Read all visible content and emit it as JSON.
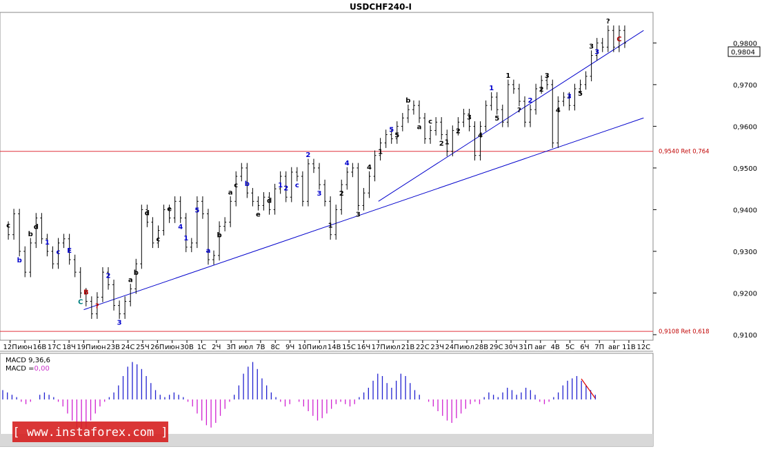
{
  "chart_data": {
    "type": "candlestick",
    "title": "USDCHF240-I",
    "symbol": "USDCHF",
    "timeframe": "H4",
    "current_price": "0,9804",
    "ylim": [
      0.909,
      0.987
    ],
    "y_ticks": [
      "0,9100",
      "0,9200",
      "0,9300",
      "0,9400",
      "0,9500",
      "0,9600",
      "0,9700",
      "0,9800"
    ],
    "x_ticks": [
      "12П",
      "июн",
      "16В",
      "17С",
      "18Ч",
      "19П",
      "июн",
      "23В",
      "24С",
      "25Ч",
      "26П",
      "июн",
      "30В",
      "1С",
      "2Ч",
      "3П",
      "июл",
      "7В",
      "8С",
      "9Ч",
      "10П",
      "июл",
      "14В",
      "15С",
      "16Ч",
      "17П",
      "июл",
      "21В",
      "22С",
      "23Ч",
      "24П",
      "июл",
      "28В",
      "29С",
      "30Ч",
      "31П",
      "авг",
      "4В",
      "5С",
      "6Ч",
      "7П",
      "авг",
      "11В",
      "12С"
    ],
    "levels": [
      {
        "value": 0.954,
        "label": "0,9540 Ret 0,764",
        "color": "#e0303a"
      },
      {
        "value": 0.9108,
        "label": "0,9108 Ret 0,618",
        "color": "#e0303a"
      }
    ],
    "price_path": [
      0.936,
      0.934,
      0.939,
      0.93,
      0.925,
      0.932,
      0.938,
      0.933,
      0.93,
      0.927,
      0.932,
      0.933,
      0.928,
      0.925,
      0.92,
      0.918,
      0.915,
      0.919,
      0.925,
      0.922,
      0.917,
      0.915,
      0.918,
      0.921,
      0.927,
      0.94,
      0.937,
      0.932,
      0.935,
      0.94,
      0.938,
      0.942,
      0.938,
      0.931,
      0.932,
      0.942,
      0.939,
      0.928,
      0.929,
      0.936,
      0.937,
      0.942,
      0.948,
      0.95,
      0.944,
      0.942,
      0.941,
      0.943,
      0.94,
      0.945,
      0.948,
      0.943,
      0.949,
      0.948,
      0.942,
      0.951,
      0.95,
      0.946,
      0.942,
      0.934,
      0.94,
      0.946,
      0.949,
      0.95,
      0.941,
      0.944,
      0.948,
      0.953,
      0.956,
      0.958,
      0.957,
      0.96,
      0.962,
      0.964,
      0.965,
      0.962,
      0.957,
      0.959,
      0.961,
      0.958,
      0.954,
      0.959,
      0.961,
      0.963,
      0.96,
      0.953,
      0.96,
      0.965,
      0.967,
      0.964,
      0.961,
      0.97,
      0.969,
      0.966,
      0.961,
      0.964,
      0.969,
      0.971,
      0.97,
      0.956,
      0.966,
      0.967,
      0.965,
      0.969,
      0.97,
      0.972,
      0.977,
      0.98,
      0.979,
      0.983,
      0.979,
      0.983,
      0.98
    ],
    "channels": [
      {
        "name": "upper",
        "from": [
          "17П",
          "0,9420"
        ],
        "to": [
          "12С",
          "0,9830"
        ],
        "color": "#0000cc"
      },
      {
        "name": "lower",
        "from": [
          "19П",
          "0,9160"
        ],
        "to": [
          "12С",
          "0,9620"
        ],
        "color": "#0000cc"
      }
    ],
    "wave_labels": [
      {
        "text": "c",
        "color": "#000000"
      },
      {
        "text": "b",
        "color": "#0000cc"
      },
      {
        "text": "b",
        "color": "#000000"
      },
      {
        "text": "d",
        "color": "#000000"
      },
      {
        "text": "1",
        "color": "#0000cc"
      },
      {
        "text": "c",
        "color": "#0000cc"
      },
      {
        "text": "E",
        "color": "#0000cc"
      },
      {
        "text": "C",
        "color": "#008080"
      },
      {
        "text": "B",
        "color": "#b00000"
      },
      {
        "text": "?",
        "color": "#cc0000"
      },
      {
        "text": "2",
        "color": "#0000cc"
      },
      {
        "text": "3",
        "color": "#0000cc"
      },
      {
        "text": "a",
        "color": "#000000"
      },
      {
        "text": "b",
        "color": "#000000"
      },
      {
        "text": "d",
        "color": "#000000"
      },
      {
        "text": "c",
        "color": "#000000"
      },
      {
        "text": "e",
        "color": "#000000"
      },
      {
        "text": "4",
        "color": "#0000cc"
      },
      {
        "text": "1",
        "color": "#0000cc"
      },
      {
        "text": "5",
        "color": "#0000cc"
      },
      {
        "text": "a",
        "color": "#0000cc"
      },
      {
        "text": "b",
        "color": "#000000"
      },
      {
        "text": "a",
        "color": "#000000"
      },
      {
        "text": "c",
        "color": "#000000"
      },
      {
        "text": "b",
        "color": "#0000cc"
      },
      {
        "text": "e",
        "color": "#000000"
      },
      {
        "text": "d",
        "color": "#000000"
      },
      {
        "text": "1",
        "color": "#0000cc"
      },
      {
        "text": "2",
        "color": "#0000cc"
      },
      {
        "text": "c",
        "color": "#0000cc"
      },
      {
        "text": "2",
        "color": "#0000cc"
      },
      {
        "text": "3",
        "color": "#0000cc"
      },
      {
        "text": "1",
        "color": "#000000"
      },
      {
        "text": "2",
        "color": "#000000"
      },
      {
        "text": "4",
        "color": "#0000cc"
      },
      {
        "text": "3",
        "color": "#000000"
      },
      {
        "text": "4",
        "color": "#000000"
      },
      {
        "text": "1",
        "color": "#000000"
      },
      {
        "text": "5",
        "color": "#0000cc"
      },
      {
        "text": "5",
        "color": "#000000"
      },
      {
        "text": "b",
        "color": "#000000"
      },
      {
        "text": "a",
        "color": "#000000"
      },
      {
        "text": "c",
        "color": "#000000"
      },
      {
        "text": "2",
        "color": "#000000"
      },
      {
        "text": "1",
        "color": "#000000"
      },
      {
        "text": "2",
        "color": "#000000"
      },
      {
        "text": "3",
        "color": "#000000"
      },
      {
        "text": "4",
        "color": "#000000"
      },
      {
        "text": "1",
        "color": "#0000cc"
      },
      {
        "text": "5",
        "color": "#000000"
      },
      {
        "text": "1",
        "color": "#000000"
      },
      {
        "text": "?",
        "color": "#000000"
      },
      {
        "text": "2",
        "color": "#0000cc"
      },
      {
        "text": "2",
        "color": "#000000"
      },
      {
        "text": "3",
        "color": "#000000"
      },
      {
        "text": "4",
        "color": "#000000"
      },
      {
        "text": "3",
        "color": "#0000cc"
      },
      {
        "text": "5",
        "color": "#000000"
      },
      {
        "text": "3",
        "color": "#000000"
      },
      {
        "text": "3",
        "color": "#0000cc"
      },
      {
        "text": "?",
        "color": "#000000"
      },
      {
        "text": "C",
        "color": "#b00000"
      }
    ],
    "macd": {
      "label": "MACD 9,36,6",
      "value_label": "MACD =",
      "value": "0,00",
      "values": [
        4,
        3,
        2,
        1,
        -1,
        -2,
        -1,
        0,
        2,
        3,
        2,
        1,
        -1,
        -3,
        -6,
        -9,
        -12,
        -14,
        -12,
        -9,
        -6,
        -3,
        -1,
        1,
        3,
        6,
        10,
        14,
        16,
        15,
        13,
        10,
        7,
        4,
        2,
        1,
        2,
        3,
        2,
        1,
        -1,
        -3,
        -6,
        -9,
        -11,
        -12,
        -10,
        -7,
        -4,
        -1,
        2,
        6,
        11,
        14,
        16,
        13,
        9,
        6,
        3,
        1,
        -1,
        -3,
        -2,
        0,
        -1,
        -3,
        -5,
        -7,
        -9,
        -8,
        -6,
        -4,
        -2,
        -1,
        -2,
        -3,
        -2,
        1,
        3,
        5,
        8,
        11,
        10,
        7,
        5,
        8,
        11,
        10,
        7,
        4,
        2,
        0,
        -1,
        -3,
        -5,
        -7,
        -9,
        -10,
        -8,
        -6,
        -4,
        -2,
        -1,
        -2,
        1,
        3,
        2,
        1,
        3,
        5,
        4,
        2,
        3,
        5,
        4,
        2,
        -1,
        -2,
        -1,
        1,
        3,
        6,
        8,
        9,
        10,
        8,
        6,
        4,
        2
      ]
    },
    "watermark": "[ www.instaforex.com ]",
    "grid": false
  }
}
